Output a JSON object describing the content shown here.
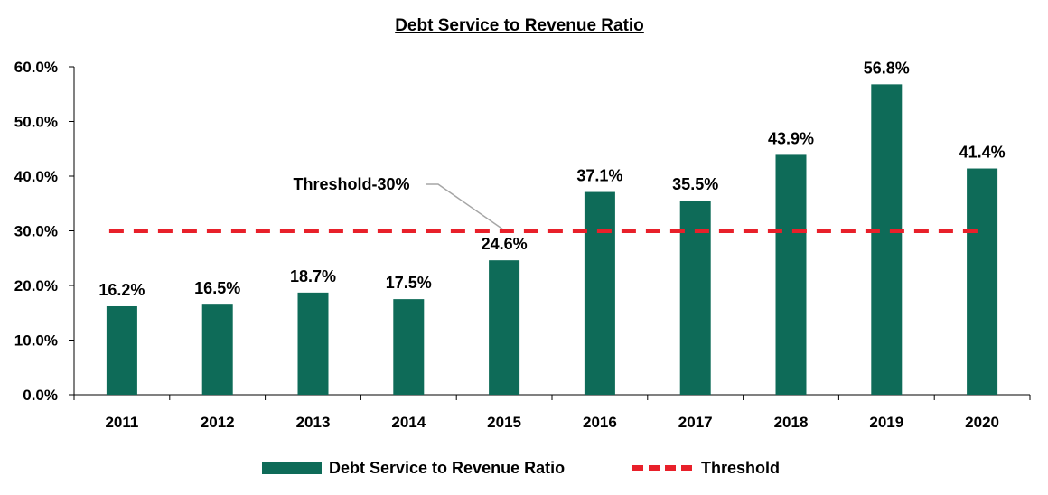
{
  "colors": {
    "bar": "#0e6b58",
    "threshold": "#e8202a",
    "axis": "#000000",
    "leader": "#a6a6a6"
  },
  "chart_data": {
    "type": "bar",
    "title": "Debt Service to Revenue Ratio",
    "xlabel": "",
    "ylabel": "",
    "categories": [
      "2011",
      "2012",
      "2013",
      "2014",
      "2015",
      "2016",
      "2017",
      "2018",
      "2019",
      "2020"
    ],
    "series": [
      {
        "name": "Debt Service to Revenue Ratio",
        "type": "bar",
        "values": [
          16.2,
          16.5,
          18.7,
          17.5,
          24.6,
          37.1,
          35.5,
          43.9,
          56.8,
          41.4
        ],
        "labels": [
          "16.2%",
          "16.5%",
          "18.7%",
          "17.5%",
          "24.6%",
          "37.1%",
          "35.5%",
          "43.9%",
          "56.8%",
          "41.4%"
        ]
      },
      {
        "name": "Threshold",
        "type": "line",
        "style": "dashed",
        "values": [
          30,
          30,
          30,
          30,
          30,
          30,
          30,
          30,
          30,
          30
        ]
      }
    ],
    "annotations": [
      {
        "text": "Threshold-30%"
      }
    ],
    "y_ticks": [
      "0.0%",
      "10.0%",
      "20.0%",
      "30.0%",
      "40.0%",
      "50.0%",
      "60.0%"
    ],
    "ylim": [
      0,
      60
    ],
    "grid": false,
    "legend_position": "bottom"
  }
}
